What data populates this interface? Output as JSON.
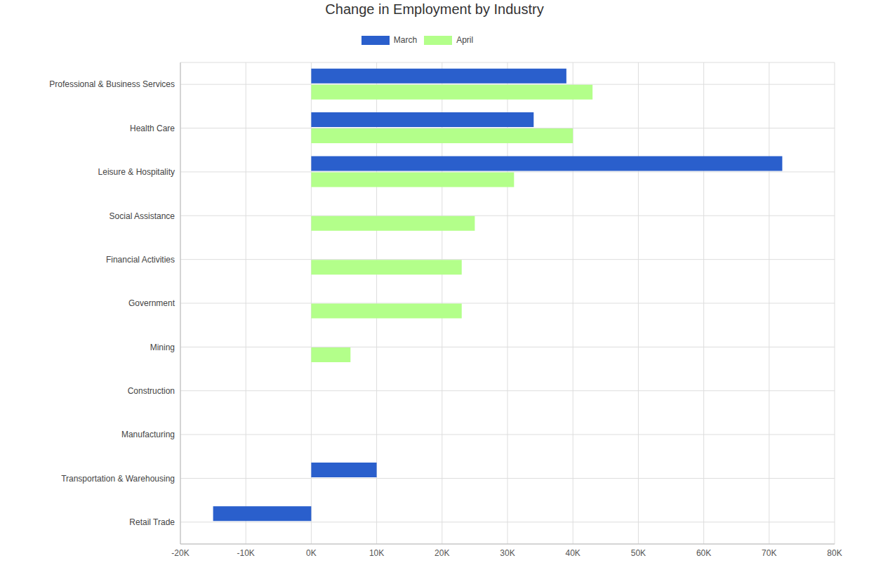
{
  "chart_data": {
    "type": "bar",
    "title": "Change in Employment by Industry",
    "orientation": "horizontal",
    "categories": [
      "Professional & Business Services",
      "Health Care",
      "Leisure & Hospitality",
      "Social Assistance",
      "Financial Activities",
      "Government",
      "Mining",
      "Construction",
      "Manufacturing",
      "Transportation & Warehousing",
      "Retail Trade"
    ],
    "series": [
      {
        "name": "March",
        "color": "#2a5fcc",
        "values": [
          39000,
          34000,
          72000,
          null,
          null,
          null,
          null,
          null,
          null,
          10000,
          -15000
        ]
      },
      {
        "name": "April",
        "color": "#b3ff8a",
        "values": [
          43000,
          40000,
          31000,
          25000,
          23000,
          23000,
          6000,
          null,
          null,
          null,
          null
        ]
      }
    ],
    "xlim": [
      -20000,
      80000
    ],
    "xticks": [
      {
        "value": -20000,
        "label": "-20K"
      },
      {
        "value": -10000,
        "label": "-10K"
      },
      {
        "value": 0,
        "label": "0K"
      },
      {
        "value": 10000,
        "label": "10K"
      },
      {
        "value": 20000,
        "label": "20K"
      },
      {
        "value": 30000,
        "label": "30K"
      },
      {
        "value": 40000,
        "label": "40K"
      },
      {
        "value": 50000,
        "label": "50K"
      },
      {
        "value": 60000,
        "label": "60K"
      },
      {
        "value": 70000,
        "label": "70K"
      },
      {
        "value": 80000,
        "label": "80K"
      }
    ],
    "grid": true,
    "legend": "top"
  }
}
